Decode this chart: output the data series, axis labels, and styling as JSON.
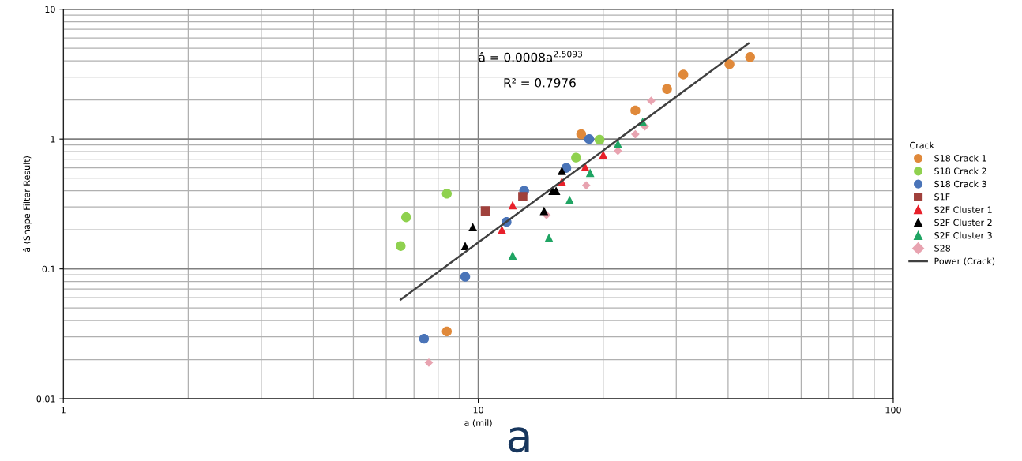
{
  "chart_data": {
    "type": "scatter",
    "xlabel": "a (mil)",
    "ylabel": "â (Shape Filter Result)",
    "legend_title": "Crack",
    "legend": "right",
    "grid": true,
    "log": "xy",
    "xlim": [
      1,
      100
    ],
    "xticks": [
      1,
      10,
      100
    ],
    "ylim": [
      0.01,
      10
    ],
    "yticks": [
      0.01,
      0.1,
      1,
      10
    ],
    "annotations": [
      "â = 0.0008a$^{2.5093}$",
      "R² = 0.7976",
      "a"
    ],
    "series": [
      {
        "name": "S18 Crack 1",
        "color": "#e0893a",
        "marker": "circle",
        "x": [
          8.4,
          17.7,
          23.9,
          28.5,
          31.2,
          40.3,
          45.2
        ],
        "values": [
          0.033,
          1.09,
          1.66,
          2.43,
          3.14,
          3.77,
          4.28
        ]
      },
      {
        "name": "S18 Crack 2",
        "color": "#8fd14f",
        "marker": "circle",
        "x": [
          6.5,
          6.7,
          8.4,
          17.2,
          19.6
        ],
        "values": [
          0.15,
          0.25,
          0.38,
          0.72,
          0.99
        ]
      },
      {
        "name": "S18 Crack 3",
        "color": "#4a74b8",
        "marker": "circle",
        "x": [
          7.4,
          9.3,
          11.7,
          12.9,
          16.3,
          18.5
        ],
        "values": [
          0.029,
          0.087,
          0.23,
          0.4,
          0.6,
          1.0
        ]
      },
      {
        "name": "S1F",
        "color": "#a0413c",
        "marker": "square",
        "x": [
          10.4,
          12.8
        ],
        "values": [
          0.28,
          0.36
        ]
      },
      {
        "name": "S2F Cluster 1",
        "color": "#e8202a",
        "marker": "triangle",
        "x": [
          11.4,
          12.1,
          15.9,
          18.1,
          20.0
        ],
        "values": [
          0.2,
          0.31,
          0.47,
          0.61,
          0.76
        ]
      },
      {
        "name": "S2F Cluster 2",
        "color": "#000000",
        "marker": "triangle",
        "x": [
          9.3,
          9.7,
          14.4,
          15.1,
          15.4,
          15.9
        ],
        "values": [
          0.15,
          0.21,
          0.28,
          0.4,
          0.4,
          0.57
        ]
      },
      {
        "name": "S2F Cluster 3",
        "color": "#1fa463",
        "marker": "triangle",
        "x": [
          12.1,
          14.8,
          16.6,
          18.6,
          21.7,
          24.9
        ],
        "values": [
          0.127,
          0.174,
          0.34,
          0.55,
          0.92,
          1.36
        ]
      },
      {
        "name": "S28",
        "color": "#e8a3b0",
        "marker": "diamond",
        "x": [
          7.6,
          14.6,
          18.2,
          21.7,
          23.9,
          25.2,
          26.1
        ],
        "values": [
          0.019,
          0.26,
          0.44,
          0.81,
          1.09,
          1.25,
          1.97
        ]
      },
      {
        "name": "Power (Crack)",
        "type": "line",
        "color": "#404040",
        "marker": "none",
        "line_style": "solid",
        "x": [
          6.5,
          44.8
        ],
        "values": [
          0.058,
          5.45
        ]
      }
    ]
  }
}
